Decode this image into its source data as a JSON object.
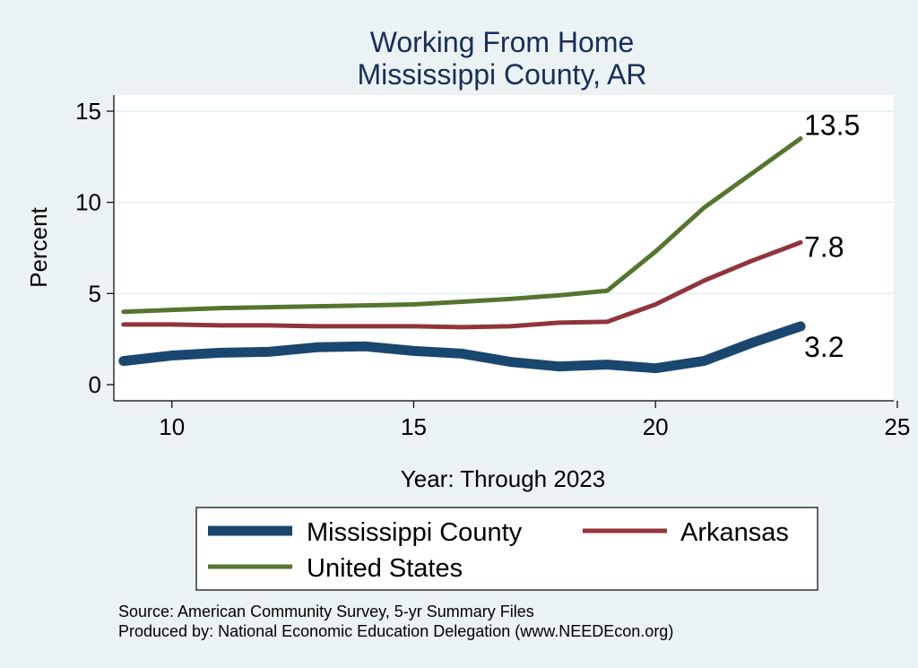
{
  "chart_data": {
    "type": "line",
    "title": "Working From Home",
    "subtitle": "Mississippi County, AR",
    "xlabel": "Year: Through 2023",
    "ylabel": "Percent",
    "xlim": [
      8.8,
      25
    ],
    "ylim": [
      0,
      15
    ],
    "xticks": [
      10,
      15,
      20,
      25
    ],
    "yticks": [
      0,
      5,
      10,
      15
    ],
    "grid": true,
    "legend_position": "bottom",
    "series": [
      {
        "name": "Mississippi County",
        "color": "#1a476f",
        "x": [
          9,
          10,
          11,
          12,
          13,
          14,
          15,
          16,
          17,
          18,
          19,
          20,
          21,
          22,
          23
        ],
        "values": [
          1.3,
          1.6,
          1.75,
          1.8,
          2.05,
          2.1,
          1.85,
          1.7,
          1.25,
          1.0,
          1.1,
          0.9,
          1.3,
          2.3,
          3.2
        ],
        "end_label": "3.2"
      },
      {
        "name": "Arkansas",
        "color": "#90353b",
        "x": [
          9,
          10,
          11,
          12,
          13,
          14,
          15,
          16,
          17,
          18,
          19,
          20,
          21,
          22,
          23
        ],
        "values": [
          3.3,
          3.3,
          3.25,
          3.25,
          3.2,
          3.2,
          3.2,
          3.15,
          3.2,
          3.4,
          3.45,
          4.4,
          5.7,
          6.8,
          7.8
        ],
        "end_label": "7.8"
      },
      {
        "name": "United States",
        "color": "#55752f",
        "x": [
          9,
          10,
          11,
          12,
          13,
          14,
          15,
          16,
          17,
          18,
          19,
          20,
          21,
          22,
          23
        ],
        "values": [
          4.0,
          4.1,
          4.2,
          4.25,
          4.3,
          4.35,
          4.4,
          4.55,
          4.7,
          4.9,
          5.15,
          7.3,
          9.7,
          11.6,
          13.5
        ],
        "end_label": "13.5"
      }
    ],
    "notes": [
      "Source: American Community Survey, 5-yr Summary Files",
      "Produced by: National Economic Education Delegation (www.NEEDEcon.org)"
    ]
  }
}
